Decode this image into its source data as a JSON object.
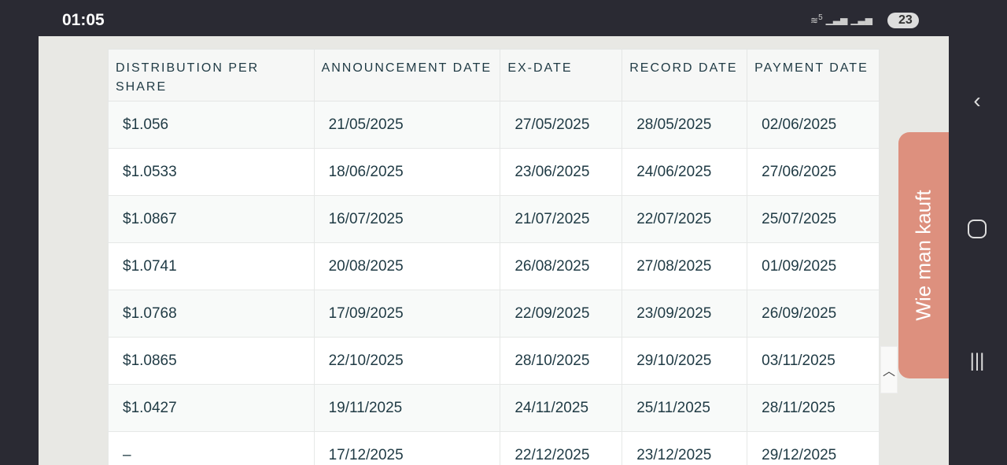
{
  "status_bar": {
    "time": "01:05",
    "wifi_label": "5",
    "battery": "23"
  },
  "table": {
    "headers": [
      "DISTRIBUTION PER SHARE",
      "ANNOUNCEMENT DATE",
      "EX-DATE",
      "RECORD DATE",
      "PAYMENT DATE"
    ],
    "rows": [
      [
        "$1.056",
        "21/05/2025",
        "27/05/2025",
        "28/05/2025",
        "02/06/2025"
      ],
      [
        "$1.0533",
        "18/06/2025",
        "23/06/2025",
        "24/06/2025",
        "27/06/2025"
      ],
      [
        "$1.0867",
        "16/07/2025",
        "21/07/2025",
        "22/07/2025",
        "25/07/2025"
      ],
      [
        "$1.0741",
        "20/08/2025",
        "26/08/2025",
        "27/08/2025",
        "01/09/2025"
      ],
      [
        "$1.0768",
        "17/09/2025",
        "22/09/2025",
        "23/09/2025",
        "26/09/2025"
      ],
      [
        "$1.0865",
        "22/10/2025",
        "28/10/2025",
        "29/10/2025",
        "03/11/2025"
      ],
      [
        "$1.0427",
        "19/11/2025",
        "24/11/2025",
        "25/11/2025",
        "28/11/2025"
      ],
      [
        "–",
        "17/12/2025",
        "22/12/2025",
        "23/12/2025",
        "29/12/2025"
      ]
    ]
  },
  "side_tab": {
    "label": "Wie man kauft",
    "color": "#dd907e"
  },
  "icons": {
    "back": "chevron-left-icon",
    "home": "circle-icon",
    "recents": "bars-icon",
    "scroll_top": "chevron-up-icon"
  }
}
